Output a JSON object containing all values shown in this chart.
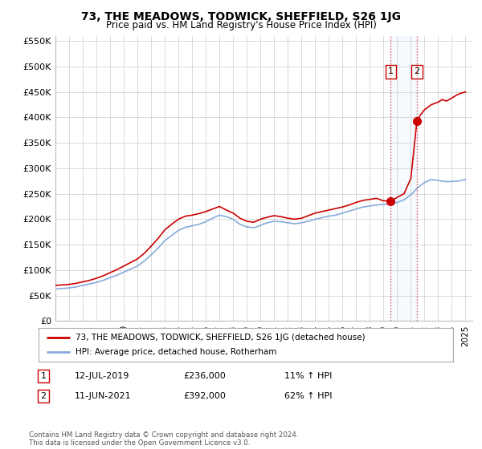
{
  "title": "73, THE MEADOWS, TODWICK, SHEFFIELD, S26 1JG",
  "subtitle": "Price paid vs. HM Land Registry's House Price Index (HPI)",
  "legend_line1": "73, THE MEADOWS, TODWICK, SHEFFIELD, S26 1JG (detached house)",
  "legend_line2": "HPI: Average price, detached house, Rotherham",
  "footnote": "Contains HM Land Registry data © Crown copyright and database right 2024.\nThis data is licensed under the Open Government Licence v3.0.",
  "sale1_date": "12-JUL-2019",
  "sale1_price": "£236,000",
  "sale1_hpi": "11% ↑ HPI",
  "sale2_date": "11-JUN-2021",
  "sale2_price": "£392,000",
  "sale2_hpi": "62% ↑ HPI",
  "red_color": "#cc0000",
  "blue_color": "#88aadd",
  "shade_color": "#ddeeff",
  "marker1_x": 2019.53,
  "marker1_y": 236000,
  "marker2_x": 2021.44,
  "marker2_y": 392000,
  "vline1_x": 2019.53,
  "vline2_x": 2021.44,
  "ylim": [
    0,
    560000
  ],
  "xlim_start": 1995.0,
  "xlim_end": 2025.5,
  "background_color": "#ffffff",
  "grid_color": "#cccccc"
}
